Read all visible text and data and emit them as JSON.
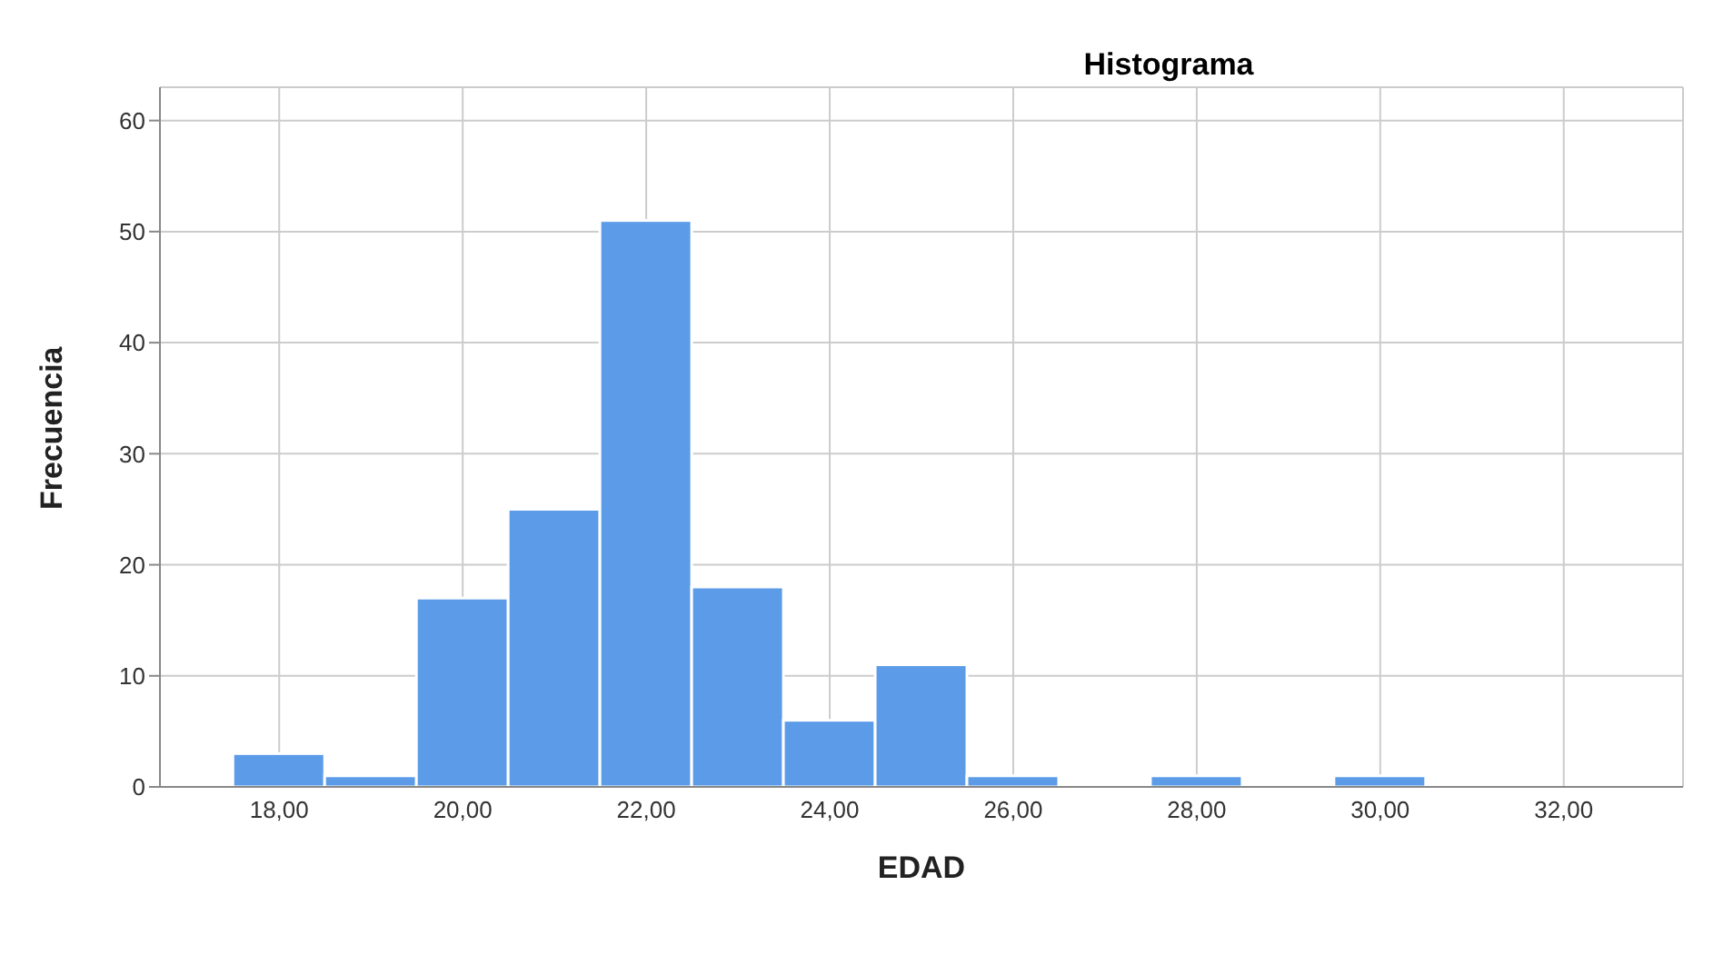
{
  "chart_data": {
    "type": "histogram",
    "title": "Histograma",
    "xlabel": "EDAD",
    "ylabel": "Frecuencia",
    "bins": [
      17.5,
      18.5,
      19.5,
      20.5,
      21.5,
      22.5,
      23.5,
      24.5,
      25.5,
      26.5,
      27.5,
      28.5,
      29.5,
      30.5
    ],
    "values": [
      3,
      1,
      17,
      25,
      51,
      18,
      6,
      11,
      1,
      0,
      1,
      0,
      1
    ],
    "color": "#5b9be8",
    "xlim": [
      16.7,
      33.3
    ],
    "xticks": [
      {
        "value": 18,
        "label": "18,00"
      },
      {
        "value": 20,
        "label": "20,00"
      },
      {
        "value": 22,
        "label": "22,00"
      },
      {
        "value": 24,
        "label": "24,00"
      },
      {
        "value": 26,
        "label": "26,00"
      },
      {
        "value": 28,
        "label": "28,00"
      },
      {
        "value": 30,
        "label": "30,00"
      },
      {
        "value": 32,
        "label": "32,00"
      }
    ],
    "ylim": [
      0,
      63
    ],
    "yticks": [
      0,
      10,
      20,
      30,
      40,
      50,
      60
    ],
    "grid": true
  }
}
